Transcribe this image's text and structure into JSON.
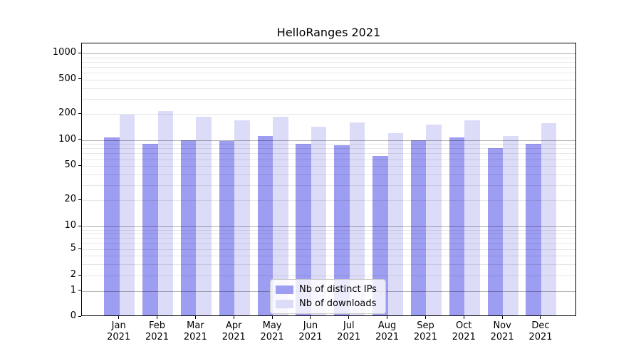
{
  "chart_data": {
    "type": "bar",
    "title": "HelloRanges 2021",
    "categories": [
      "Jan",
      "Feb",
      "Mar",
      "Apr",
      "May",
      "Jun",
      "Jul",
      "Aug",
      "Sep",
      "Oct",
      "Nov",
      "Dec"
    ],
    "category_year": "2021",
    "series": [
      {
        "name": "Nb of distinct IPs",
        "color": "#9d9df1",
        "values": [
          107,
          90,
          100,
          97,
          111,
          90,
          87,
          65,
          100,
          107,
          80,
          90
        ]
      },
      {
        "name": "Nb of downloads",
        "color": "#dcdcf9",
        "values": [
          198,
          215,
          186,
          170,
          184,
          143,
          158,
          120,
          152,
          170,
          111,
          156
        ]
      }
    ],
    "xlabel": "",
    "ylabel": "",
    "yscale": "symlog",
    "yticks": [
      0,
      1,
      2,
      5,
      10,
      20,
      50,
      100,
      200,
      500,
      1000
    ],
    "ylim": [
      0,
      1400
    ],
    "grid": "both",
    "legend_position": "lower center",
    "colors": {
      "axis": "#000000",
      "background": "#ffffff",
      "major_grid": "#b3b3b3",
      "minor_grid": "#e8e8e8"
    }
  }
}
